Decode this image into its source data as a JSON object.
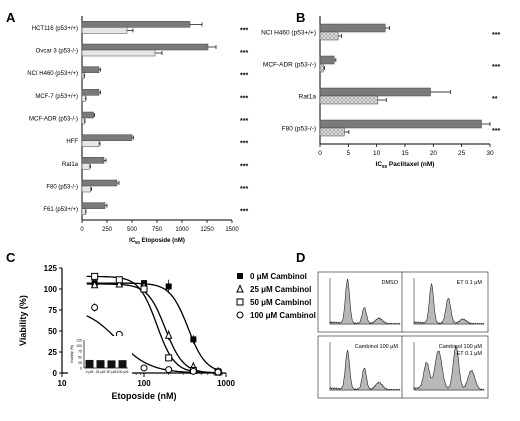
{
  "chart_data": [
    {
      "panel": "A",
      "type": "bar",
      "orientation": "horizontal",
      "categories": [
        "HCT116 (p53+/+)",
        "Ovcar 3 (p53-/-)",
        "NCI H460 (p53+/+)",
        "MCF-7 (p53+/+)",
        "MCF-ADR (p53-/-)",
        "HFF",
        "Rat1a",
        "F80 (p53-/-)",
        "F61 (p53+/+)"
      ],
      "series": [
        {
          "values": [
            1080,
            1260,
            170,
            170,
            115,
            500,
            220,
            350,
            230
          ],
          "errors": [
            120,
            80,
            15,
            15,
            10,
            15,
            20,
            20,
            20
          ],
          "color": "#7a7a7a"
        },
        {
          "values": [
            450,
            730,
            20,
            35,
            25,
            170,
            75,
            85,
            35
          ],
          "errors": [
            60,
            70,
            5,
            5,
            5,
            10,
            10,
            10,
            5
          ],
          "color": "#e6e6e6"
        }
      ],
      "significance": [
        "***",
        "***",
        "***",
        "***",
        "***",
        "***",
        "***",
        "***",
        "***"
      ],
      "xticks": [
        "0",
        "250",
        "500",
        "750",
        "1000",
        "1250",
        "1500"
      ],
      "xlim": [
        0,
        1500
      ],
      "xlabel": "IC50 Etoposide (nM)"
    },
    {
      "panel": "B",
      "type": "bar",
      "orientation": "horizontal",
      "categories": [
        "NCI H460 (p53+/+)",
        "MCF-ADR (p53-/-)",
        "Rat1a",
        "F80 (p53-/-)"
      ],
      "series": [
        {
          "values": [
            11.5,
            2.5,
            19.5,
            28.5
          ],
          "errors": [
            0.8,
            0.3,
            3.5,
            1.5
          ],
          "color": "#7a7a7a"
        },
        {
          "values": [
            3.2,
            0.6,
            10.2,
            4.3
          ],
          "errors": [
            0.6,
            0.2,
            1.5,
            0.8
          ],
          "color": "#dcdcdc",
          "pattern": "cross-hatch"
        }
      ],
      "significance": [
        "***",
        "***",
        "**",
        "***"
      ],
      "xticks": [
        "0",
        "5",
        "10",
        "15",
        "20",
        "25",
        "30"
      ],
      "xlim": [
        0,
        30
      ],
      "xlabel": "IC50 Paclitaxel (nM)"
    },
    {
      "panel": "C",
      "type": "scatter",
      "xscale": "log",
      "xlim": [
        10,
        1000
      ],
      "ylim": [
        0,
        125
      ],
      "xticks": [
        "10",
        "100",
        "1000"
      ],
      "yticks": [
        "0",
        "25",
        "50",
        "75",
        "100",
        "125"
      ],
      "xlabel": "Etoposide (nM)",
      "ylabel": "Viability (%)",
      "legend_position": "top-right",
      "series": [
        {
          "name": "0 μM Cambinol",
          "marker": "filled-square",
          "x": [
            25,
            50,
            100,
            200,
            400,
            800
          ],
          "y": [
            107,
            107,
            107,
            103,
            40,
            2
          ],
          "err": [
            3,
            3,
            2,
            8,
            5,
            1
          ]
        },
        {
          "name": "25 μM Cambinol",
          "marker": "triangle",
          "x": [
            25,
            50,
            100,
            200,
            400,
            800
          ],
          "y": [
            105,
            106,
            104,
            45,
            8,
            2
          ],
          "err": [
            3,
            3,
            5,
            6,
            2,
            1
          ]
        },
        {
          "name": "50 μM Cambinol",
          "marker": "square",
          "x": [
            25,
            50,
            100,
            200,
            400,
            800
          ],
          "y": [
            115,
            111,
            100,
            18,
            3,
            1
          ],
          "err": [
            2,
            3,
            4,
            3,
            1,
            1
          ]
        },
        {
          "name": "100 μM Cambinol",
          "marker": "circle",
          "x": [
            25,
            50,
            100,
            200,
            400,
            800
          ],
          "y": [
            78,
            46,
            6,
            4,
            2,
            1
          ],
          "err": [
            5,
            3,
            2,
            1,
            1,
            1
          ]
        }
      ],
      "inset": {
        "type": "bar",
        "categories": [
          "0 μM",
          "25 μM",
          "50 μM",
          "100 μM"
        ],
        "values": [
          36,
          35,
          34,
          35
        ],
        "yticks": [
          "0",
          "25",
          "50",
          "75",
          "100",
          "125"
        ],
        "ylim": [
          0,
          125
        ],
        "ylabel": "Viability (%)"
      }
    }
  ],
  "flow": {
    "label": "D",
    "panels": [
      {
        "label_lines": [
          "DMSO"
        ]
      },
      {
        "label_lines": [
          "ET 0.1 μM"
        ]
      },
      {
        "label_lines": [
          "Cambinol 100 μM"
        ]
      },
      {
        "label_lines": [
          "Cambinol 100 μM",
          "ET 0.1 μM"
        ]
      }
    ]
  },
  "panel_labels": [
    "A",
    "B",
    "C",
    "D"
  ]
}
